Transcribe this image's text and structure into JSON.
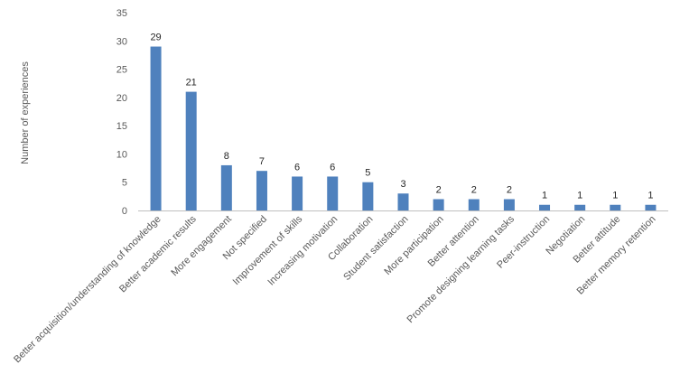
{
  "chart_data": {
    "type": "bar",
    "title": "",
    "xlabel": "",
    "ylabel": "Number  of experiences",
    "ylim": [
      0,
      35
    ],
    "yticks": [
      0,
      5,
      10,
      15,
      20,
      25,
      30,
      35
    ],
    "grid": false,
    "legend": "none",
    "bar_color": "#4F81BD",
    "categories": [
      "Better acquisition/understanding of knowledge",
      "Better academic results",
      "More engagement",
      "Not specified",
      "Improvement of skills",
      "Increasing motivation",
      "Collaboration",
      "Student satisfaction",
      "More participation",
      "Better attention",
      "Promote designing learning tasks",
      "Peer-instruction",
      "Negotiation",
      "Better attitude",
      "Better memory retention"
    ],
    "values": [
      29,
      21,
      8,
      7,
      6,
      6,
      5,
      3,
      2,
      2,
      2,
      1,
      1,
      1,
      1
    ]
  }
}
